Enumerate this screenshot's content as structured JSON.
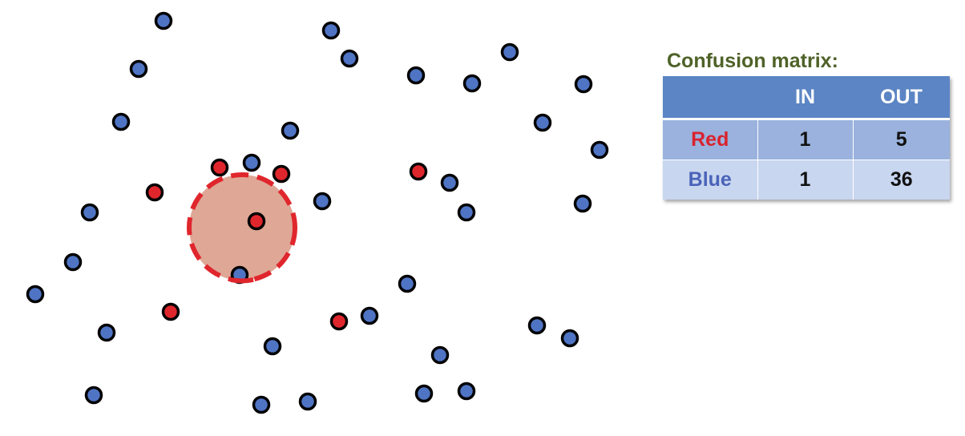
{
  "matrix": {
    "title": "Confusion matrix:",
    "title_color": "#4f6228",
    "columns": [
      "",
      "IN",
      "OUT"
    ],
    "rows": [
      {
        "label": "Red",
        "label_color": "#d9232e",
        "in": "1",
        "out": "5"
      },
      {
        "label": "Blue",
        "label_color": "#4a63b8",
        "in": "1",
        "out": "36"
      }
    ]
  },
  "colors": {
    "blue_point": "#4f74c4",
    "red_point": "#e0262d",
    "point_outline": "#000000",
    "circle_fill": "#dfa796",
    "circle_stroke": "#e0262d"
  },
  "points": {
    "note_counts": {
      "red": 6,
      "blue": 37
    }
  }
}
